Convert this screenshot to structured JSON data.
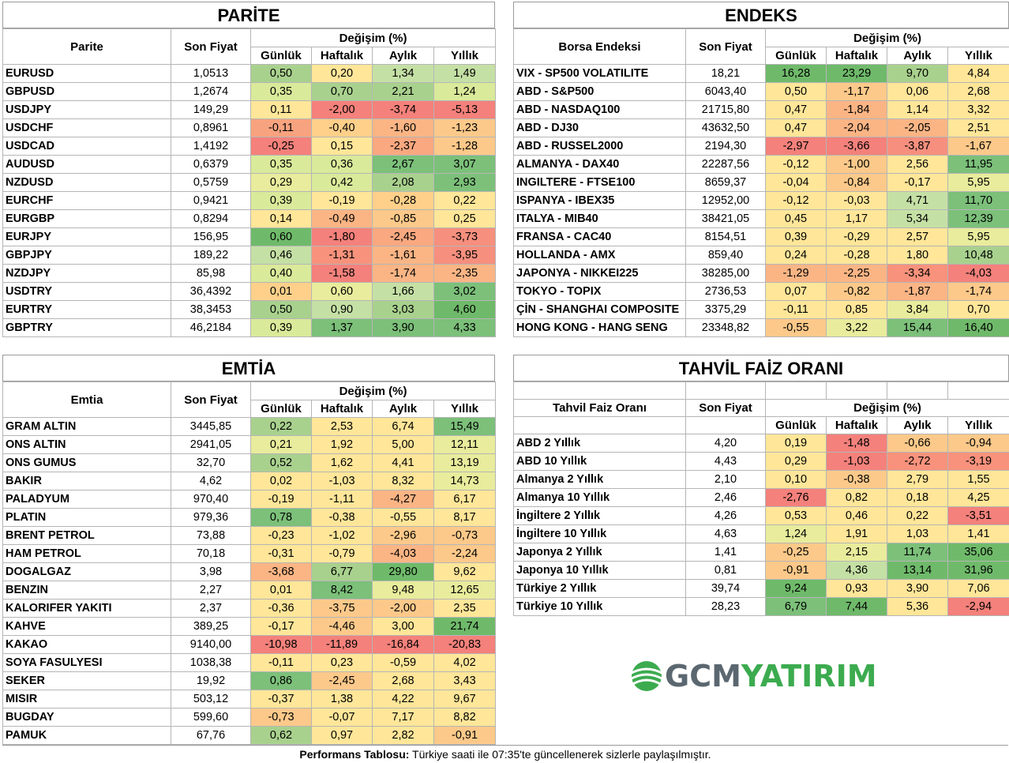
{
  "parite": {
    "title": "PARİTE",
    "col_name": "Parite",
    "col_price": "Son Fiyat",
    "col_change": "Değişim (%)",
    "sub": [
      "Günlük",
      "Haftalık",
      "Aylık",
      "Yıllık"
    ],
    "rows": [
      {
        "name": "EURUSD",
        "price": "1,0513",
        "v": [
          "0,50",
          "0,20",
          "1,34",
          "1,49"
        ],
        "c": [
          "#a9d18e",
          "#ffe699",
          "#c5e0a5",
          "#c5e0a5"
        ]
      },
      {
        "name": "GBPUSD",
        "price": "1,2674",
        "v": [
          "0,35",
          "0,70",
          "2,21",
          "1,24"
        ],
        "c": [
          "#d9ea9a",
          "#a9d18e",
          "#a9d18e",
          "#d9ea9a"
        ]
      },
      {
        "name": "USDJPY",
        "price": "149,29",
        "v": [
          "0,11",
          "-2,00",
          "-3,74",
          "-5,13"
        ],
        "c": [
          "#ffe699",
          "#f4817b",
          "#f4817b",
          "#f4817b"
        ]
      },
      {
        "name": "USDCHF",
        "price": "0,8961",
        "v": [
          "-0,11",
          "-0,40",
          "-1,60",
          "-1,23"
        ],
        "c": [
          "#f8a37f",
          "#ffd08a",
          "#fbb585",
          "#fcc98a"
        ]
      },
      {
        "name": "USDCAD",
        "price": "1,4192",
        "v": [
          "-0,25",
          "0,15",
          "-2,37",
          "-1,28"
        ],
        "c": [
          "#f4817b",
          "#ffe699",
          "#f9a880",
          "#fcc98a"
        ]
      },
      {
        "name": "AUDUSD",
        "price": "0,6379",
        "v": [
          "0,35",
          "0,36",
          "2,67",
          "3,07"
        ],
        "c": [
          "#d9ea9a",
          "#d9ea9a",
          "#7cc07a",
          "#7cc07a"
        ]
      },
      {
        "name": "NZDUSD",
        "price": "0,5759",
        "v": [
          "0,29",
          "0,42",
          "2,08",
          "2,93"
        ],
        "c": [
          "#e8ec9c",
          "#d9ea9a",
          "#a9d18e",
          "#7cc07a"
        ]
      },
      {
        "name": "EURCHF",
        "price": "0,9421",
        "v": [
          "0,39",
          "-0,19",
          "-0,28",
          "0,22"
        ],
        "c": [
          "#d9ea9a",
          "#ffe699",
          "#ffd08a",
          "#ffe699"
        ]
      },
      {
        "name": "EURGBP",
        "price": "0,8294",
        "v": [
          "0,14",
          "-0,49",
          "-0,85",
          "0,25"
        ],
        "c": [
          "#ffe699",
          "#fbb585",
          "#fcc98a",
          "#ffe699"
        ]
      },
      {
        "name": "EURJPY",
        "price": "156,95",
        "v": [
          "0,60",
          "-1,80",
          "-2,45",
          "-3,73"
        ],
        "c": [
          "#6fba6a",
          "#f4817b",
          "#f9a880",
          "#f68f7e"
        ]
      },
      {
        "name": "GBPJPY",
        "price": "189,22",
        "v": [
          "0,46",
          "-1,31",
          "-1,61",
          "-3,95"
        ],
        "c": [
          "#c5e0a5",
          "#f8927c",
          "#fbb585",
          "#f68f7e"
        ]
      },
      {
        "name": "NZDJPY",
        "price": "85,98",
        "v": [
          "0,40",
          "-1,58",
          "-1,74",
          "-2,35"
        ],
        "c": [
          "#d9ea9a",
          "#f4817b",
          "#fbb585",
          "#fbb585"
        ]
      },
      {
        "name": "USDTRY",
        "price": "36,4392",
        "v": [
          "0,01",
          "0,60",
          "1,66",
          "3,02"
        ],
        "c": [
          "#ffd08a",
          "#e8ec9c",
          "#c5e0a5",
          "#7cc07a"
        ]
      },
      {
        "name": "EURTRY",
        "price": "38,3453",
        "v": [
          "0,50",
          "0,90",
          "3,03",
          "4,60"
        ],
        "c": [
          "#a9d18e",
          "#c5e0a5",
          "#a9d18e",
          "#6fba6a"
        ]
      },
      {
        "name": "GBPTRY",
        "price": "46,2184",
        "v": [
          "0,39",
          "1,37",
          "3,90",
          "4,33"
        ],
        "c": [
          "#d9ea9a",
          "#7cc07a",
          "#7cc07a",
          "#7cc07a"
        ]
      }
    ]
  },
  "endeks": {
    "title": "ENDEKS",
    "col_name": "Borsa Endeksi",
    "col_price": "Son Fiyat",
    "col_change": "Değişim (%)",
    "sub": [
      "Günlük",
      "Haftalık",
      "Aylık",
      "Yıllık"
    ],
    "rows": [
      {
        "name": "VIX  - SP500 VOLATILITE",
        "price": "18,21",
        "v": [
          "16,28",
          "23,29",
          "9,70",
          "4,84"
        ],
        "c": [
          "#6fba6a",
          "#6fba6a",
          "#a9d18e",
          "#ffe699"
        ]
      },
      {
        "name": "ABD - S&P500",
        "price": "6043,40",
        "v": [
          "0,50",
          "-1,17",
          "0,06",
          "2,68"
        ],
        "c": [
          "#ffe699",
          "#fcc98a",
          "#ffe699",
          "#ffe699"
        ]
      },
      {
        "name": "ABD - NASDAQ100",
        "price": "21715,80",
        "v": [
          "0,47",
          "-1,84",
          "1,14",
          "3,32"
        ],
        "c": [
          "#ffe699",
          "#fbb585",
          "#ffe699",
          "#ffe699"
        ]
      },
      {
        "name": "ABD - DJ30",
        "price": "43632,50",
        "v": [
          "0,47",
          "-2,04",
          "-2,05",
          "2,51"
        ],
        "c": [
          "#ffe699",
          "#fbb585",
          "#fbb585",
          "#ffe699"
        ]
      },
      {
        "name": "ABD - RUSSEL2000",
        "price": "2194,30",
        "v": [
          "-2,97",
          "-3,66",
          "-3,87",
          "-1,67"
        ],
        "c": [
          "#f4817b",
          "#f4817b",
          "#f68f7e",
          "#fcc98a"
        ]
      },
      {
        "name": "ALMANYA - DAX40",
        "price": "22287,56",
        "v": [
          "-0,12",
          "-1,00",
          "2,56",
          "11,95"
        ],
        "c": [
          "#ffe699",
          "#fcc98a",
          "#ffe699",
          "#7cc07a"
        ]
      },
      {
        "name": "INGILTERE - FTSE100",
        "price": "8659,37",
        "v": [
          "-0,04",
          "-0,84",
          "-0,17",
          "5,95"
        ],
        "c": [
          "#ffe699",
          "#fcc98a",
          "#ffe699",
          "#e8ec9c"
        ]
      },
      {
        "name": "ISPANYA - IBEX35",
        "price": "12952,00",
        "v": [
          "-0,12",
          "-0,03",
          "4,71",
          "11,70"
        ],
        "c": [
          "#ffe699",
          "#ffe699",
          "#c5e0a5",
          "#7cc07a"
        ]
      },
      {
        "name": "ITALYA - MIB40",
        "price": "38421,05",
        "v": [
          "0,45",
          "1,17",
          "5,34",
          "12,39"
        ],
        "c": [
          "#ffe699",
          "#ffe699",
          "#c5e0a5",
          "#7cc07a"
        ]
      },
      {
        "name": "FRANSA - CAC40",
        "price": "8154,51",
        "v": [
          "0,39",
          "-0,29",
          "2,57",
          "5,95"
        ],
        "c": [
          "#ffe699",
          "#ffe699",
          "#ffe699",
          "#e8ec9c"
        ]
      },
      {
        "name": "HOLLANDA - AMX",
        "price": "859,40",
        "v": [
          "0,24",
          "-0,28",
          "1,80",
          "10,48"
        ],
        "c": [
          "#ffe699",
          "#ffe699",
          "#ffe699",
          "#a9d18e"
        ]
      },
      {
        "name": "JAPONYA - NIKKEI225",
        "price": "38285,00",
        "v": [
          "-1,29",
          "-2,25",
          "-3,34",
          "-4,03"
        ],
        "c": [
          "#fbb585",
          "#fbb585",
          "#f8927c",
          "#f4817b"
        ]
      },
      {
        "name": "TOKYO - TOPIX",
        "price": "2736,53",
        "v": [
          "0,07",
          "-0,82",
          "-1,87",
          "-1,74"
        ],
        "c": [
          "#ffe699",
          "#fcc98a",
          "#fbb585",
          "#fcc98a"
        ]
      },
      {
        "name": "ÇİN - SHANGHAI COMPOSITE",
        "price": "3375,29",
        "v": [
          "-0,11",
          "0,85",
          "3,84",
          "0,70"
        ],
        "c": [
          "#ffe699",
          "#ffe699",
          "#e8ec9c",
          "#ffe699"
        ]
      },
      {
        "name": "HONG KONG - HANG SENG",
        "price": "23348,82",
        "v": [
          "-0,55",
          "3,22",
          "15,44",
          "16,40"
        ],
        "c": [
          "#fcc98a",
          "#e8ec9c",
          "#7cc07a",
          "#6fba6a"
        ]
      }
    ]
  },
  "emtia": {
    "title": "EMTİA",
    "col_name": "Emtia",
    "col_price": "Son Fiyat",
    "col_change": "Değişim (%)",
    "sub": [
      "Günlük",
      "Haftalık",
      "Aylık",
      "Yıllık"
    ],
    "rows": [
      {
        "name": "GRAM ALTIN",
        "price": "3445,85",
        "v": [
          "0,22",
          "2,53",
          "6,74",
          "15,49"
        ],
        "c": [
          "#a9d18e",
          "#ffe699",
          "#ffe699",
          "#7cc07a"
        ]
      },
      {
        "name": "ONS ALTIN",
        "price": "2941,05",
        "v": [
          "0,21",
          "1,92",
          "5,00",
          "12,11"
        ],
        "c": [
          "#e8ec9c",
          "#ffe699",
          "#ffe699",
          "#e8ec9c"
        ]
      },
      {
        "name": "ONS GUMUS",
        "price": "32,70",
        "v": [
          "0,52",
          "1,62",
          "4,41",
          "13,19"
        ],
        "c": [
          "#a9d18e",
          "#ffe699",
          "#ffe699",
          "#e8ec9c"
        ]
      },
      {
        "name": "BAKIR",
        "price": "4,62",
        "v": [
          "0,02",
          "-1,03",
          "8,32",
          "14,73"
        ],
        "c": [
          "#ffe699",
          "#ffe699",
          "#ffe699",
          "#e8ec9c"
        ]
      },
      {
        "name": "PALADYUM",
        "price": "970,40",
        "v": [
          "-0,19",
          "-1,11",
          "-4,27",
          "6,17"
        ],
        "c": [
          "#ffe699",
          "#ffe699",
          "#fbb585",
          "#ffe699"
        ]
      },
      {
        "name": "PLATIN",
        "price": "979,36",
        "v": [
          "0,78",
          "-0,38",
          "-0,55",
          "8,17"
        ],
        "c": [
          "#7cc07a",
          "#ffe699",
          "#ffe699",
          "#ffe699"
        ]
      },
      {
        "name": "BRENT PETROL",
        "price": "73,88",
        "v": [
          "-0,23",
          "-1,02",
          "-2,96",
          "-0,73"
        ],
        "c": [
          "#ffe699",
          "#ffe699",
          "#fcc98a",
          "#fcc98a"
        ]
      },
      {
        "name": "HAM PETROL",
        "price": "70,18",
        "v": [
          "-0,31",
          "-0,79",
          "-4,03",
          "-2,24"
        ],
        "c": [
          "#ffe699",
          "#ffe699",
          "#fbb585",
          "#fcc98a"
        ]
      },
      {
        "name": "DOGALGAZ",
        "price": "3,98",
        "v": [
          "-3,68",
          "6,77",
          "29,80",
          "9,62"
        ],
        "c": [
          "#fbb585",
          "#a9d18e",
          "#6fba6a",
          "#ffe699"
        ]
      },
      {
        "name": "BENZIN",
        "price": "2,27",
        "v": [
          "0,01",
          "8,42",
          "9,48",
          "12,65"
        ],
        "c": [
          "#ffe699",
          "#7cc07a",
          "#e8ec9c",
          "#e8ec9c"
        ]
      },
      {
        "name": "KALORIFER YAKITI",
        "price": "2,37",
        "v": [
          "-0,36",
          "-3,75",
          "-2,00",
          "2,35"
        ],
        "c": [
          "#ffe699",
          "#fcc98a",
          "#fcc98a",
          "#ffe699"
        ]
      },
      {
        "name": "KAHVE",
        "price": "389,25",
        "v": [
          "-0,17",
          "-4,46",
          "3,00",
          "21,74"
        ],
        "c": [
          "#ffe699",
          "#fcc98a",
          "#ffe699",
          "#6fba6a"
        ]
      },
      {
        "name": "KAKAO",
        "price": "9140,00",
        "v": [
          "-10,98",
          "-11,89",
          "-16,84",
          "-20,83"
        ],
        "c": [
          "#f4817b",
          "#f4817b",
          "#f4817b",
          "#f4817b"
        ]
      },
      {
        "name": "SOYA FASULYESI",
        "price": "1038,38",
        "v": [
          "-0,11",
          "0,23",
          "-0,59",
          "4,02"
        ],
        "c": [
          "#ffe699",
          "#ffe699",
          "#ffe699",
          "#ffe699"
        ]
      },
      {
        "name": "SEKER",
        "price": "19,92",
        "v": [
          "0,86",
          "-2,45",
          "2,68",
          "3,43"
        ],
        "c": [
          "#7cc07a",
          "#fcc98a",
          "#ffe699",
          "#ffe699"
        ]
      },
      {
        "name": "MISIR",
        "price": "503,12",
        "v": [
          "-0,37",
          "1,38",
          "4,22",
          "9,67"
        ],
        "c": [
          "#ffe699",
          "#ffe699",
          "#ffe699",
          "#ffe699"
        ]
      },
      {
        "name": "BUGDAY",
        "price": "599,60",
        "v": [
          "-0,73",
          "-0,07",
          "7,17",
          "8,82"
        ],
        "c": [
          "#fcc98a",
          "#ffe699",
          "#ffe699",
          "#ffe699"
        ]
      },
      {
        "name": "PAMUK",
        "price": "67,76",
        "v": [
          "0,62",
          "0,97",
          "2,82",
          "-0,91"
        ],
        "c": [
          "#a9d18e",
          "#ffe699",
          "#ffe699",
          "#fcc98a"
        ]
      }
    ]
  },
  "tahvil": {
    "title": "TAHVİL FAİZ ORANI",
    "col_name": "Tahvil Faiz Oranı",
    "col_price": "Son Fiyat",
    "col_change": "Değişim (%)",
    "sub": [
      "Günlük",
      "Haftalık",
      "Aylık",
      "Yıllık"
    ],
    "rows": [
      {
        "name": "ABD 2 Yıllık",
        "price": "4,20",
        "v": [
          "0,19",
          "-1,48",
          "-0,66",
          "-0,94"
        ],
        "c": [
          "#ffe699",
          "#f4817b",
          "#fcc98a",
          "#fcc98a"
        ]
      },
      {
        "name": "ABD 10 Yıllık",
        "price": "4,43",
        "v": [
          "0,29",
          "-1,03",
          "-2,72",
          "-3,19"
        ],
        "c": [
          "#ffe699",
          "#f4817b",
          "#f8927c",
          "#f8927c"
        ]
      },
      {
        "name": "Almanya 2 Yıllık",
        "price": "2,10",
        "v": [
          "0,10",
          "-0,38",
          "2,79",
          "1,55"
        ],
        "c": [
          "#ffe699",
          "#fcc98a",
          "#ffe699",
          "#ffe699"
        ]
      },
      {
        "name": "Almanya 10 Yıllık",
        "price": "2,46",
        "v": [
          "-2,76",
          "0,82",
          "0,18",
          "4,25"
        ],
        "c": [
          "#f4817b",
          "#ffe699",
          "#ffe699",
          "#ffe699"
        ]
      },
      {
        "name": "İngiltere 2 Yıllık",
        "price": "4,26",
        "v": [
          "0,53",
          "0,46",
          "0,22",
          "-3,51"
        ],
        "c": [
          "#ffe699",
          "#ffe699",
          "#ffe699",
          "#f4817b"
        ]
      },
      {
        "name": "İngiltere 10 Yıllık",
        "price": "4,63",
        "v": [
          "1,24",
          "1,91",
          "1,03",
          "1,41"
        ],
        "c": [
          "#e8ec9c",
          "#ffe699",
          "#ffe699",
          "#ffe699"
        ]
      },
      {
        "name": "Japonya 2 Yıllık",
        "price": "1,41",
        "v": [
          "-0,25",
          "2,15",
          "11,74",
          "35,06"
        ],
        "c": [
          "#fcc98a",
          "#e8ec9c",
          "#7cc07a",
          "#6fba6a"
        ]
      },
      {
        "name": "Japonya 10 Yıllık",
        "price": "0,81",
        "v": [
          "-0,91",
          "4,36",
          "13,14",
          "31,96"
        ],
        "c": [
          "#fcc98a",
          "#c5e0a5",
          "#6fba6a",
          "#6fba6a"
        ]
      },
      {
        "name": "Türkiye 2 Yıllık",
        "price": "39,74",
        "v": [
          "9,24",
          "0,93",
          "3,90",
          "7,06"
        ],
        "c": [
          "#6fba6a",
          "#ffe699",
          "#ffe699",
          "#ffe699"
        ]
      },
      {
        "name": "Türkiye 10 Yıllık",
        "price": "28,23",
        "v": [
          "6,79",
          "7,44",
          "5,36",
          "-2,94"
        ],
        "c": [
          "#7cc07a",
          "#6fba6a",
          "#ffe699",
          "#f4817b"
        ]
      }
    ]
  },
  "logo": {
    "part1": "GCM",
    "part2": "YATIRIM"
  },
  "footer": {
    "bold": "Performans Tablosu:",
    "text": " Türkiye saati ile 07:35'te güncellenerek sizlerle paylaşılmıştır."
  }
}
